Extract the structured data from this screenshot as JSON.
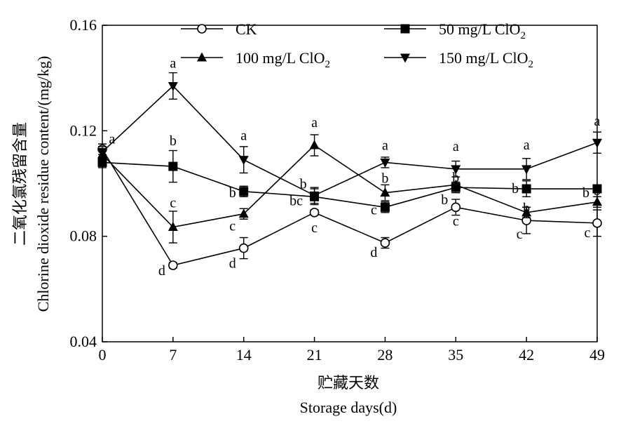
{
  "chart_data": {
    "type": "line",
    "xlabel_cn": "贮藏天数",
    "xlabel": "Storage days(d)",
    "ylabel_cn": "二氧化氯残留含量",
    "ylabel": "Chlorine dioxide residue content/(mg/kg)",
    "x": [
      0,
      7,
      14,
      21,
      28,
      35,
      42,
      49
    ],
    "x_ticks": [
      "0",
      "7",
      "14",
      "21",
      "28",
      "35",
      "42",
      "49"
    ],
    "y_ticks": [
      "0.04",
      "0.08",
      "0.12",
      "0.16"
    ],
    "xlim": [
      0,
      49
    ],
    "ylim": [
      0.04,
      0.16
    ],
    "legend_placement": "top",
    "series": [
      {
        "name": "CK",
        "marker": "circle-open",
        "values": [
          0.113,
          0.069,
          0.0755,
          0.089,
          0.0775,
          0.091,
          0.086,
          0.085
        ],
        "errors": [
          0.002,
          0.001,
          0.004,
          0.001,
          0.002,
          0.003,
          0.005,
          0.005
        ],
        "labels": [
          "a",
          "d",
          "d",
          "c",
          "d",
          "c",
          "c",
          "c"
        ]
      },
      {
        "name": "50 mg/L ClO2",
        "name_main": "50 mg/L ClO",
        "name_sub": "2",
        "marker": "square-filled",
        "values": [
          0.108,
          0.1065,
          0.097,
          0.095,
          0.091,
          0.0985,
          0.098,
          0.098
        ],
        "errors": [
          0.002,
          0.006,
          0.002,
          0.003,
          0.002,
          0.002,
          0.003,
          0.001
        ],
        "labels": [
          "",
          "b",
          "b",
          "b",
          "c",
          "b",
          "b",
          "b"
        ]
      },
      {
        "name": "100 mg/L ClO2",
        "name_main": "100 mg/L ClO",
        "name_sub": "2",
        "marker": "triangle-up-filled",
        "values": [
          0.111,
          0.0835,
          0.0885,
          0.1145,
          0.0965,
          0.0995,
          0.089,
          0.093
        ],
        "errors": [
          0.002,
          0.006,
          0.002,
          0.004,
          0.003,
          0.001,
          0.002,
          0.002
        ],
        "labels": [
          "",
          "c",
          "c",
          "a",
          "b",
          "b",
          "b",
          "b"
        ]
      },
      {
        "name": "150 mg/L ClO2",
        "name_main": "150 mg/L ClO",
        "name_sub": "2",
        "marker": "triangle-down-filled",
        "values": [
          0.112,
          0.137,
          0.109,
          0.0955,
          0.108,
          0.1055,
          0.1055,
          0.1155
        ],
        "errors": [
          0.002,
          0.005,
          0.005,
          0.003,
          0.002,
          0.003,
          0.004,
          0.004
        ],
        "labels": [
          "",
          "a",
          "a",
          "bc",
          "a",
          "a",
          "a",
          "a"
        ]
      }
    ]
  }
}
